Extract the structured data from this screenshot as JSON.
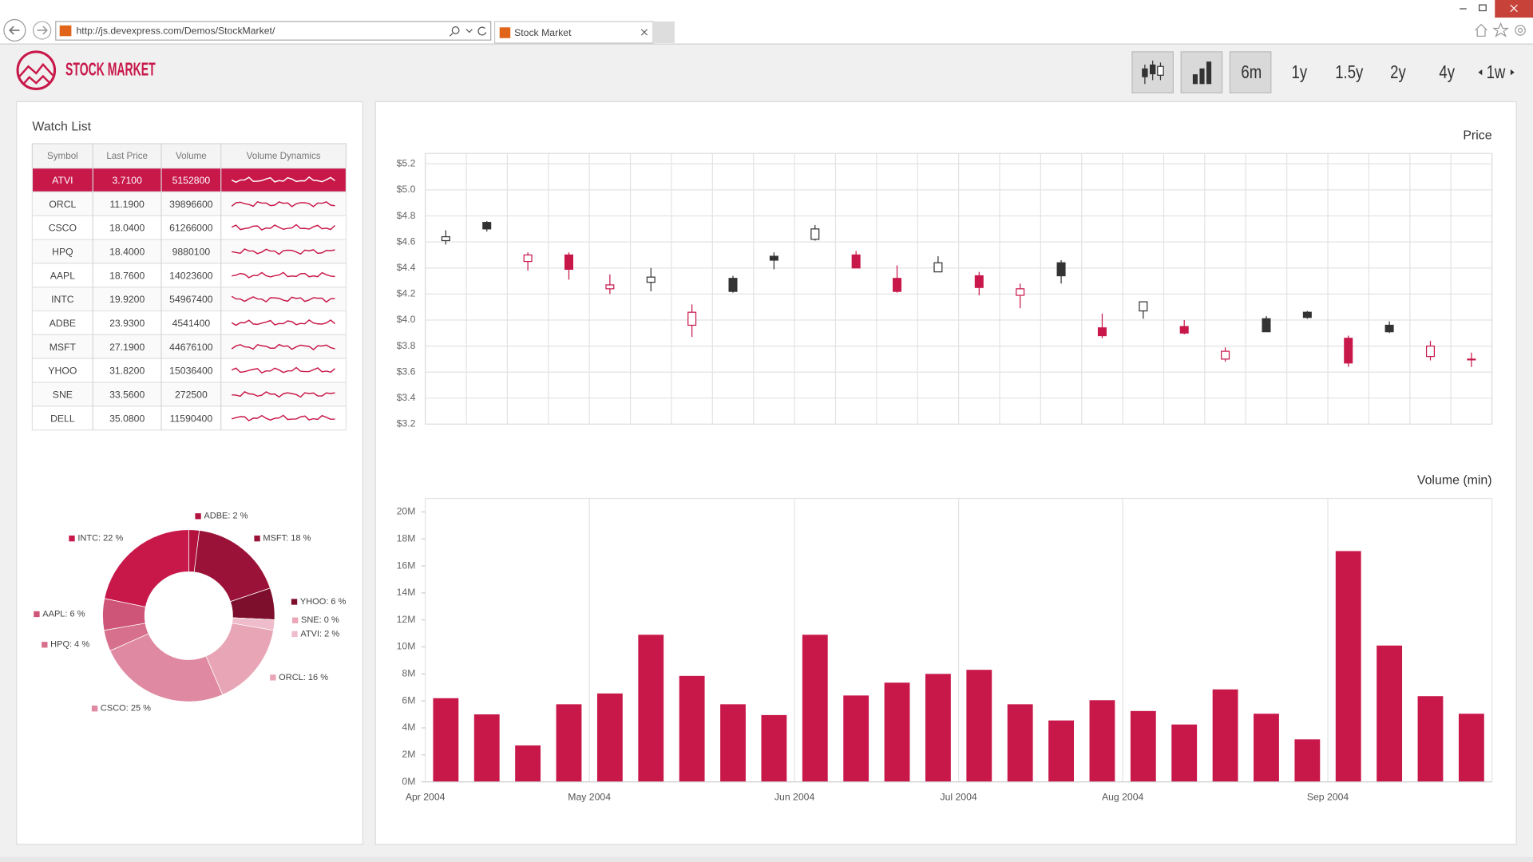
{
  "browser": {
    "url": "http://js.devexpress.com/Demos/StockMarket/",
    "tab_title": "Stock Market"
  },
  "header": {
    "title": "STOCK MARKET",
    "periods": [
      "6m",
      "1y",
      "1.5y",
      "2y",
      "4y",
      "1w"
    ],
    "selected_period": 0
  },
  "watch_list": {
    "title": "Watch List",
    "columns": [
      "Symbol",
      "Last Price",
      "Volume",
      "Volume Dynamics"
    ],
    "selected_row": 0,
    "rows": [
      [
        "ATVI",
        "3.7100",
        "5152800"
      ],
      [
        "ORCL",
        "11.1900",
        "39896600"
      ],
      [
        "CSCO",
        "18.0400",
        "61266000"
      ],
      [
        "HPQ",
        "18.4000",
        "9880100"
      ],
      [
        "AAPL",
        "18.7600",
        "14023600"
      ],
      [
        "INTC",
        "19.9200",
        "54967400"
      ],
      [
        "ADBE",
        "23.9300",
        "4541400"
      ],
      [
        "MSFT",
        "27.1900",
        "44676100"
      ],
      [
        "YHOO",
        "31.8200",
        "15036400"
      ],
      [
        "SNE",
        "33.5600",
        "272500"
      ],
      [
        "DELL",
        "35.0800",
        "11590400"
      ]
    ]
  },
  "chart_data": [
    {
      "type": "pie",
      "categories": [
        "ADBE",
        "MSFT",
        "YHOO",
        "SNE",
        "ATVI",
        "ORCL",
        "CSCO",
        "HPQ",
        "AAPL",
        "INTC"
      ],
      "values": [
        2,
        18,
        6,
        0,
        2,
        16,
        25,
        4,
        6,
        22
      ],
      "value_labels": [
        "ADBE: 2 %",
        "MSFT: 18 %",
        "YHOO: 6 %",
        "SNE: 0 %",
        "ATVI: 2 %",
        "ORCL: 16 %",
        "CSCO: 25 %",
        "HPQ: 4 %",
        "AAPL: 6 %",
        "INTC: 22 %"
      ],
      "colors": [
        "#b3123f",
        "#9a1237",
        "#7d0e2c",
        "#eba6b8",
        "#efbccb",
        "#e8a5b6",
        "#df8aa2",
        "#d7708d",
        "#cf5578",
        "#c8184a"
      ]
    },
    {
      "type": "candlestick",
      "title": "Price",
      "open": [
        4.61,
        4.75,
        4.45,
        4.5,
        4.24,
        4.29,
        3.96,
        4.32,
        4.49,
        4.62,
        4.5,
        4.32,
        4.37,
        4.34,
        4.19,
        4.44,
        3.94,
        4.07,
        3.95,
        3.7,
        4.01,
        4.06,
        3.86,
        3.96,
        3.72,
        3.7
      ],
      "high": [
        4.69,
        4.76,
        4.52,
        4.52,
        4.35,
        4.4,
        4.12,
        4.34,
        4.52,
        4.73,
        4.53,
        4.42,
        4.49,
        4.37,
        4.28,
        4.46,
        4.05,
        4.14,
        4.0,
        3.79,
        4.03,
        4.07,
        3.88,
        3.99,
        3.84,
        3.75
      ],
      "low": [
        4.58,
        4.68,
        4.38,
        4.31,
        4.2,
        4.22,
        3.87,
        4.21,
        4.39,
        4.61,
        4.4,
        4.21,
        4.37,
        4.19,
        4.09,
        4.28,
        3.86,
        4.01,
        3.89,
        3.68,
        3.91,
        4.01,
        3.64,
        3.9,
        3.69,
        3.64
      ],
      "close": [
        4.64,
        4.7,
        4.5,
        4.39,
        4.27,
        4.33,
        4.06,
        4.22,
        4.46,
        4.7,
        4.4,
        4.22,
        4.44,
        4.25,
        4.24,
        4.34,
        3.88,
        4.14,
        3.9,
        3.76,
        3.91,
        4.02,
        3.67,
        3.91,
        3.8,
        3.7
      ],
      "ylim": [
        3.2,
        5.28
      ],
      "yticks": [
        {
          "value": 3.2,
          "label": "$3.2"
        },
        {
          "value": 3.4,
          "label": "$3.4"
        },
        {
          "value": 3.6,
          "label": "$3.6"
        },
        {
          "value": 3.8,
          "label": "$3.8"
        },
        {
          "value": 4,
          "label": "$4.0"
        },
        {
          "value": 4.2,
          "label": "$4.2"
        },
        {
          "value": 4.4,
          "label": "$4.4"
        },
        {
          "value": 4.6,
          "label": "$4.6"
        },
        {
          "value": 4.8,
          "label": "$4.8"
        },
        {
          "value": 5,
          "label": "$5.0"
        },
        {
          "value": 5.2,
          "label": "$5.2"
        }
      ],
      "color": "#333333",
      "reduction_color": "#c8184a",
      "grid": true
    },
    {
      "type": "bar",
      "title": "Volume (min)",
      "categories": [
        "Apr 2004",
        null,
        null,
        null,
        "May 2004",
        null,
        null,
        null,
        null,
        "Jun 2004",
        null,
        null,
        null,
        "Jul 2004",
        null,
        null,
        null,
        "Aug 2004",
        null,
        null,
        null,
        null,
        "Sep 2004",
        null,
        null,
        null
      ],
      "values": [
        6.2,
        5.0,
        2.7,
        5.75,
        6.55,
        10.9,
        7.85,
        5.75,
        4.95,
        10.9,
        6.4,
        7.35,
        8.0,
        8.3,
        5.75,
        4.55,
        6.05,
        5.25,
        4.25,
        6.85,
        5.05,
        3.15,
        17.1,
        10.1,
        6.35,
        5.05
      ],
      "color": "#c8184a",
      "ylim": [
        0,
        21
      ],
      "yticks": [
        {
          "value": 0,
          "label": "0M"
        },
        {
          "value": 2,
          "label": "2M"
        },
        {
          "value": 4,
          "label": "4M"
        },
        {
          "value": 6,
          "label": "6M"
        },
        {
          "value": 8,
          "label": "8M"
        },
        {
          "value": 10,
          "label": "10M"
        },
        {
          "value": 12,
          "label": "12M"
        },
        {
          "value": 14,
          "label": "14M"
        },
        {
          "value": 16,
          "label": "16M"
        },
        {
          "value": 18,
          "label": "18M"
        },
        {
          "value": 20,
          "label": "20M"
        }
      ]
    }
  ]
}
